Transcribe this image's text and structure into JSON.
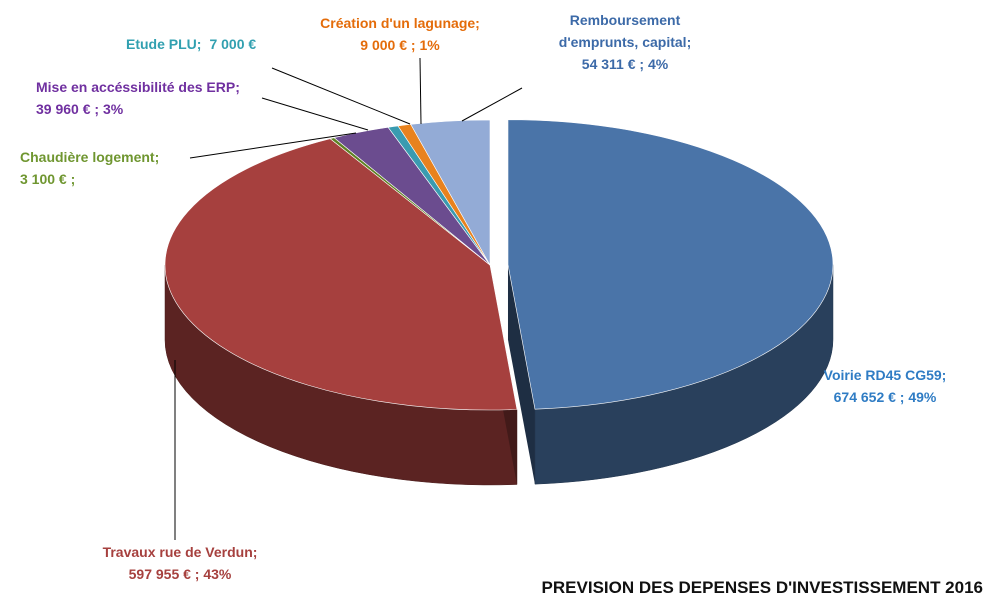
{
  "chart_data": {
    "type": "pie",
    "title": "PREVISION DES DEPENSES D'INVESTISSEMENT 2016",
    "categories": [
      "Voirie RD45 CG59;",
      "Travaux rue de Verdun;",
      "Chaudière logement;",
      "Mise en accéssibilité des ERP;",
      "Etude PLU;",
      "Création d'un lagunage;",
      "Remboursement d'emprunts, capital;"
    ],
    "values": [
      674652,
      597955,
      3100,
      39960,
      7000,
      9000,
      54311
    ],
    "value_labels": [
      "674 652 € ; 49%",
      "597 955 € ; 43%",
      "3 100 € ;",
      "39 960 € ; 3%",
      "7 000 €",
      "9 000 € ; 1%",
      "54 311 € ; 4%"
    ],
    "colors": [
      "#4a74a8",
      "#a6403e",
      "#5f8124",
      "#6b4c8f",
      "#3a9bb0",
      "#e8821e",
      "#93abd6"
    ]
  }
}
